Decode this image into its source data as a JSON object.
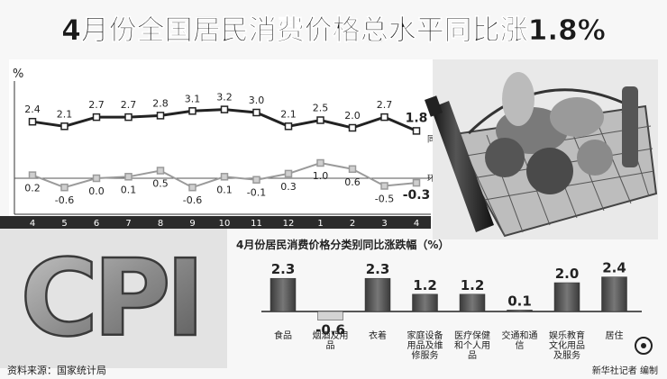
{
  "title": "4月份全国居民消费价格总水平同比涨1.8%",
  "source_left": "资料来源：国家统计局",
  "source_right": "新华社记者 编制",
  "chart_data": [
    {
      "type": "line",
      "ylabel": "%",
      "x": [
        "4",
        "5",
        "6",
        "7",
        "8",
        "9",
        "10",
        "11",
        "12",
        "1",
        "2",
        "3",
        "4"
      ],
      "series": [
        {
          "values": [
            2.4,
            2.1,
            2.7,
            2.7,
            2.8,
            3.1,
            3.2,
            3.0,
            2.1,
            2.5,
            2.0,
            2.7,
            1.8
          ],
          "labels": [
            "2.4",
            "2.1",
            "2.7",
            "2.7",
            "2.8",
            "3.1",
            "3.2",
            "3.0",
            "2.1",
            "2.5",
            "2.0",
            "2.7",
            "1.8"
          ],
          "color": "#222222"
        },
        {
          "name": "环比",
          "values": [
            0.2,
            -0.6,
            0.0,
            0.1,
            0.5,
            -0.6,
            0.1,
            -0.1,
            0.3,
            1.0,
            0.6,
            -0.5,
            -0.3
          ],
          "labels": [
            "0.2",
            "-0.6",
            "0.0",
            "0.1",
            "0.5",
            "-0.6",
            "0.1",
            "-0.1",
            "0.3",
            "1.0",
            "0.6",
            "-0.5",
            "-0.3"
          ],
          "color": "#9a9a9a"
        }
      ],
      "end_labels": [
        "同比",
        "环比"
      ],
      "grid": false
    },
    {
      "type": "bar",
      "title": "4月份居民消费价格分类别同比涨跌幅（%）",
      "categories": [
        "食品",
        "烟酒及用品",
        "衣着",
        "家庭设备用品及维修服务",
        "医疗保健和个人用品",
        "交通和通信",
        "娱乐教育文化用品及服务",
        "居住"
      ],
      "values": [
        2.3,
        -0.6,
        2.3,
        1.2,
        1.2,
        0.1,
        2.0,
        2.4
      ],
      "labels": [
        "2.3",
        "-0.6",
        "2.3",
        "1.2",
        "1.2",
        "0.1",
        "2.0",
        "2.4"
      ],
      "color": "#555555"
    }
  ],
  "cpi_text": "CPI"
}
